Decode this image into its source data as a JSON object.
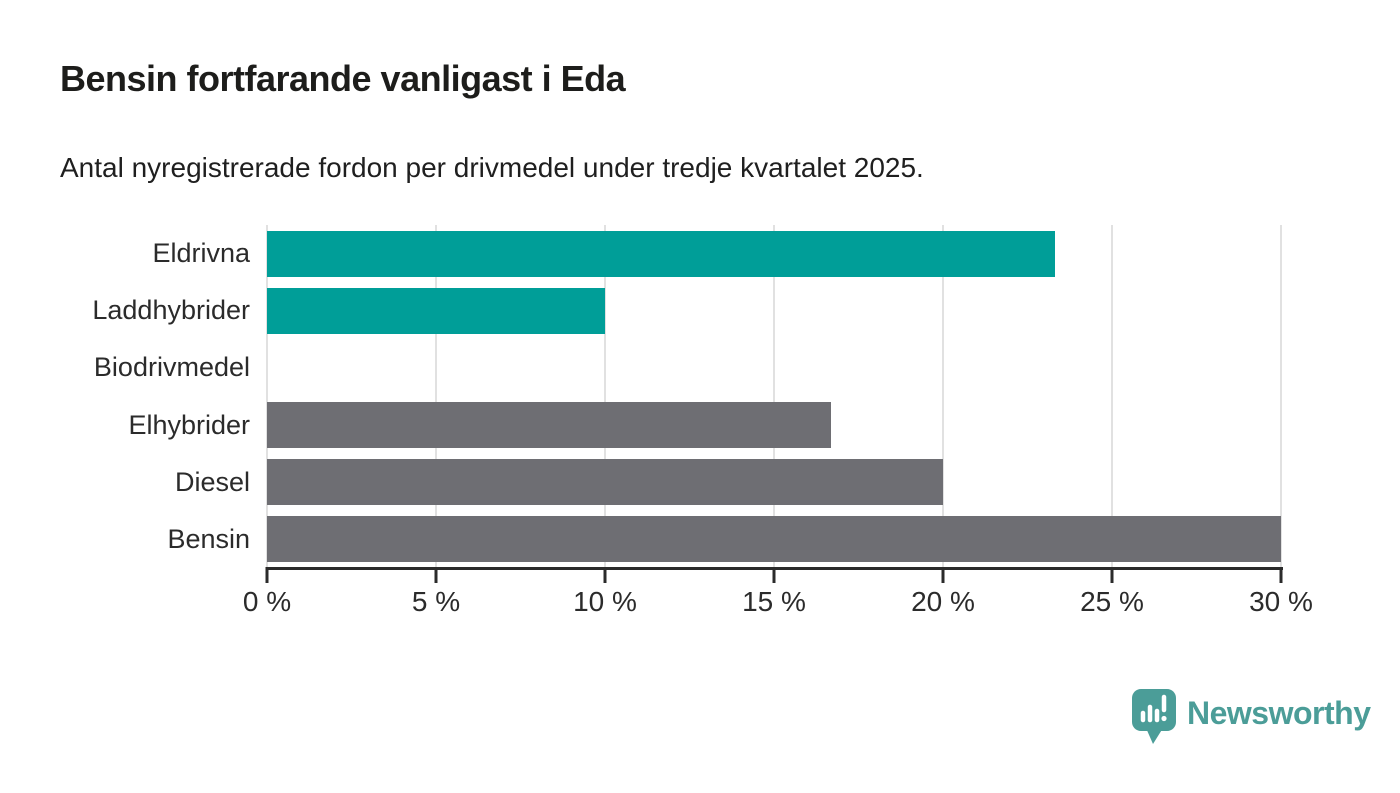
{
  "header": {
    "title": "Bensin fortfarande vanligast i Eda",
    "subtitle": "Antal nyregistrerade fordon per drivmedel under tredje kvartalet 2025."
  },
  "chart_data": {
    "type": "bar",
    "orientation": "horizontal",
    "title": "Bensin fortfarande vanligast i Eda",
    "subtitle": "Antal nyregistrerade fordon per drivmedel under tredje kvartalet 2025.",
    "categories": [
      "Eldrivna",
      "Laddhybrider",
      "Biodrivmedel",
      "Elhybrider",
      "Diesel",
      "Bensin"
    ],
    "values": [
      23.3,
      10,
      0,
      16.7,
      20,
      30
    ],
    "unit": "%",
    "xlabel": "",
    "ylabel": "",
    "xlim": [
      0,
      30
    ],
    "x_ticks": [
      0,
      5,
      10,
      15,
      20,
      25,
      30
    ],
    "x_tick_labels": [
      "0 %",
      "5 %",
      "10 %",
      "15 %",
      "20 %",
      "25 %",
      "30 %"
    ],
    "bar_colors": [
      "#009E98",
      "#009E98",
      "#6E6E73",
      "#6E6E73",
      "#6E6E73",
      "#6E6E73"
    ],
    "grid": "vertical-gridlines-on",
    "legend": "none"
  },
  "branding": {
    "logo_text": "Newsworthy",
    "logo_color": "#4B9D98"
  },
  "colors": {
    "highlight": "#009E98",
    "neutral": "#6E6E73",
    "gridline": "#E1E1E1",
    "axis": "#2B2B2B",
    "title_text": "#1D1D1B"
  }
}
